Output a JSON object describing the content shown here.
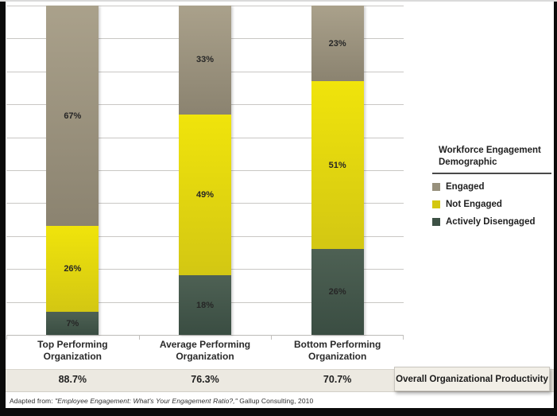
{
  "chart_data": {
    "type": "bar",
    "stacked": true,
    "categories": [
      "Top Performing Organization",
      "Average Performing Organization",
      "Bottom Performing Organization"
    ],
    "series": [
      {
        "name": "Engaged",
        "values": [
          67,
          33,
          23
        ],
        "color_top": "#aaa18b",
        "color_bottom": "#8b8370",
        "legend_color": "#97907c"
      },
      {
        "name": "Not Engaged",
        "values": [
          26,
          49,
          51
        ],
        "color_top": "#f0e40b",
        "color_bottom": "#d3c713",
        "legend_color": "#d4c70e"
      },
      {
        "name": "Actively Disengaged",
        "values": [
          7,
          18,
          26
        ],
        "color_top": "#4e6154",
        "color_bottom": "#3a4d42",
        "legend_color": "#3d5145"
      }
    ],
    "value_suffix": "%",
    "ylim": [
      0,
      100
    ],
    "gridline_interval": 10,
    "grid": true,
    "legend_position": "right",
    "legend_title": "Workforce Engagement Demographic"
  },
  "productivity": {
    "label": "Overall Organizational Productivity",
    "values": [
      "88.7%",
      "76.3%",
      "70.7%"
    ]
  },
  "footer": {
    "prefix": "Adapted from: ",
    "citation": "\"Employee Engagement: What's Your Engagement Ratio?,\"",
    "suffix": " Gallup Consulting, 2010"
  }
}
